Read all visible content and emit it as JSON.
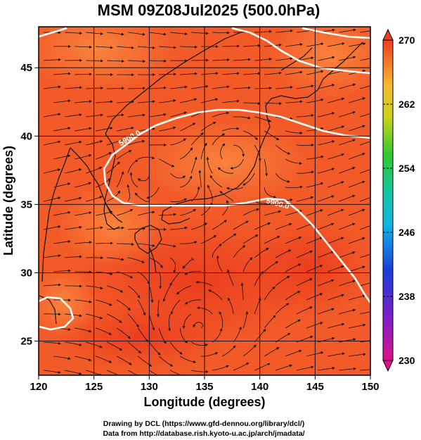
{
  "title": "MSM 09Z08Jul2025 (500.0hPa)",
  "xlabel": "Longitude (degrees)",
  "ylabel": "Latitude  (degrees)",
  "x_ticks": [
    "120",
    "125",
    "130",
    "135",
    "140",
    "145",
    "150"
  ],
  "y_ticks": [
    "25",
    "30",
    "35",
    "40",
    "45"
  ],
  "colorbar": {
    "ticks": [
      "270",
      "262",
      "254",
      "246",
      "238",
      "230"
    ],
    "min": 230,
    "max": 270
  },
  "contour_labels": [
    "5900.0",
    "5900.0"
  ],
  "credits": [
    "Drawing by DCL (https://www.gfd-dennou.org/library/dcl/)",
    "Data from http://database.rish.kyoto-u.ac.jp/arch/jmadata/"
  ],
  "colors": {
    "field_main": "#f25a28",
    "field_warm": "#ee4420",
    "field_cool": "#f87a38",
    "contour": "#ffffff",
    "coast": "#111111",
    "grid": "#000000"
  },
  "map_extent": {
    "lon": [
      120,
      150
    ],
    "lat": [
      22.5,
      48
    ]
  }
}
